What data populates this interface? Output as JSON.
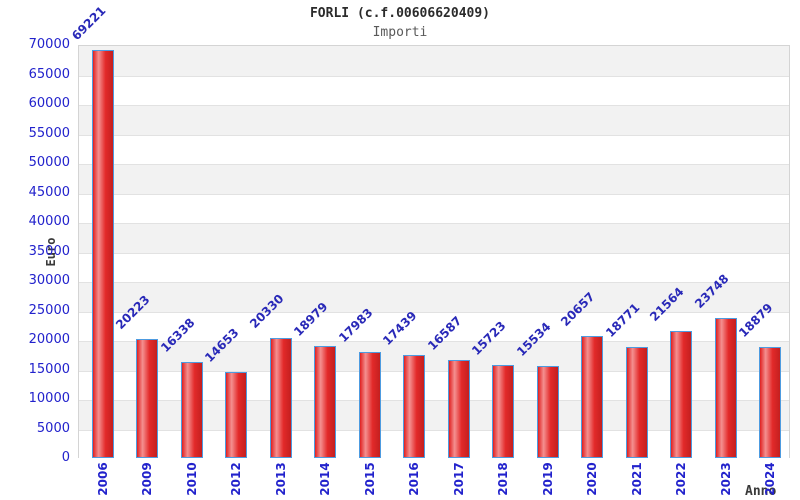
{
  "header": {
    "title": "FORLI (c.f.00606620409)",
    "subtitle": "Importi"
  },
  "chart_data": {
    "type": "bar",
    "title": "FORLI (c.f.00606620409)",
    "subtitle": "Importi",
    "xlabel": "Anno",
    "ylabel": "Euro",
    "categories": [
      "2006",
      "2009",
      "2010",
      "2012",
      "2013",
      "2014",
      "2015",
      "2016",
      "2017",
      "2018",
      "2019",
      "2020",
      "2021",
      "2022",
      "2023",
      "2024"
    ],
    "values": [
      69221,
      20223,
      16338,
      14653,
      20330,
      18979,
      17983,
      17439,
      16587,
      15723,
      15534,
      20657,
      18771,
      21564,
      23748,
      18879
    ],
    "ylim": [
      0,
      70000
    ],
    "ytick_step": 5000,
    "yticks": [
      0,
      5000,
      10000,
      15000,
      20000,
      25000,
      30000,
      35000,
      40000,
      45000,
      50000,
      55000,
      60000,
      65000,
      70000
    ],
    "grid": "alternating horizontal bands with light gridlines",
    "legend": "none",
    "value_labels": "above bars, rotated 45deg",
    "xtick_rotation": "vertical",
    "colors": {
      "bar_fill": "#e03030",
      "bar_highlight": "#f49090",
      "bar_shadow": "#c41f1f",
      "bar_border": "#4d9be0",
      "axis_text": "#2222cc",
      "value_label": "#2929b8",
      "band_gray": "#f2f2f2",
      "band_white": "#ffffff",
      "gridline": "#e2e2e2",
      "plot_border": "#d4d4d4",
      "title_color": "#2b2b2b",
      "subtitle_color": "#5a5a5a",
      "axis_title_color": "#3a3a3a"
    }
  }
}
